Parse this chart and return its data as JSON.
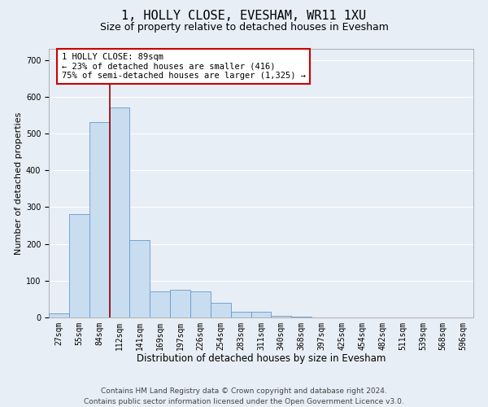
{
  "title1": "1, HOLLY CLOSE, EVESHAM, WR11 1XU",
  "title2": "Size of property relative to detached houses in Evesham",
  "xlabel": "Distribution of detached houses by size in Evesham",
  "ylabel": "Number of detached properties",
  "bin_labels": [
    "27sqm",
    "55sqm",
    "84sqm",
    "112sqm",
    "141sqm",
    "169sqm",
    "197sqm",
    "226sqm",
    "254sqm",
    "283sqm",
    "311sqm",
    "340sqm",
    "368sqm",
    "397sqm",
    "425sqm",
    "454sqm",
    "482sqm",
    "511sqm",
    "539sqm",
    "568sqm",
    "596sqm"
  ],
  "bar_values": [
    10,
    280,
    530,
    570,
    210,
    70,
    75,
    70,
    40,
    15,
    15,
    5,
    2,
    0,
    0,
    0,
    0,
    0,
    0,
    0,
    0
  ],
  "bar_color": "#c9ddf0",
  "bar_edge_color": "#6699cc",
  "property_line_x": 2.5,
  "annotation_text": "1 HOLLY CLOSE: 89sqm\n← 23% of detached houses are smaller (416)\n75% of semi-detached houses are larger (1,325) →",
  "annotation_box_color": "#ffffff",
  "annotation_box_edge_color": "#cc0000",
  "ylim": [
    0,
    730
  ],
  "yticks": [
    0,
    100,
    200,
    300,
    400,
    500,
    600,
    700
  ],
  "footer1": "Contains HM Land Registry data © Crown copyright and database right 2024.",
  "footer2": "Contains public sector information licensed under the Open Government Licence v3.0.",
  "bg_color": "#e8eef5",
  "plot_bg_color": "#e8eef5",
  "grid_color": "#ffffff",
  "title1_fontsize": 11,
  "title2_fontsize": 9,
  "xlabel_fontsize": 8.5,
  "ylabel_fontsize": 8,
  "tick_fontsize": 7,
  "footer_fontsize": 6.5,
  "annotation_fontsize": 7.5,
  "line_color": "#990000"
}
